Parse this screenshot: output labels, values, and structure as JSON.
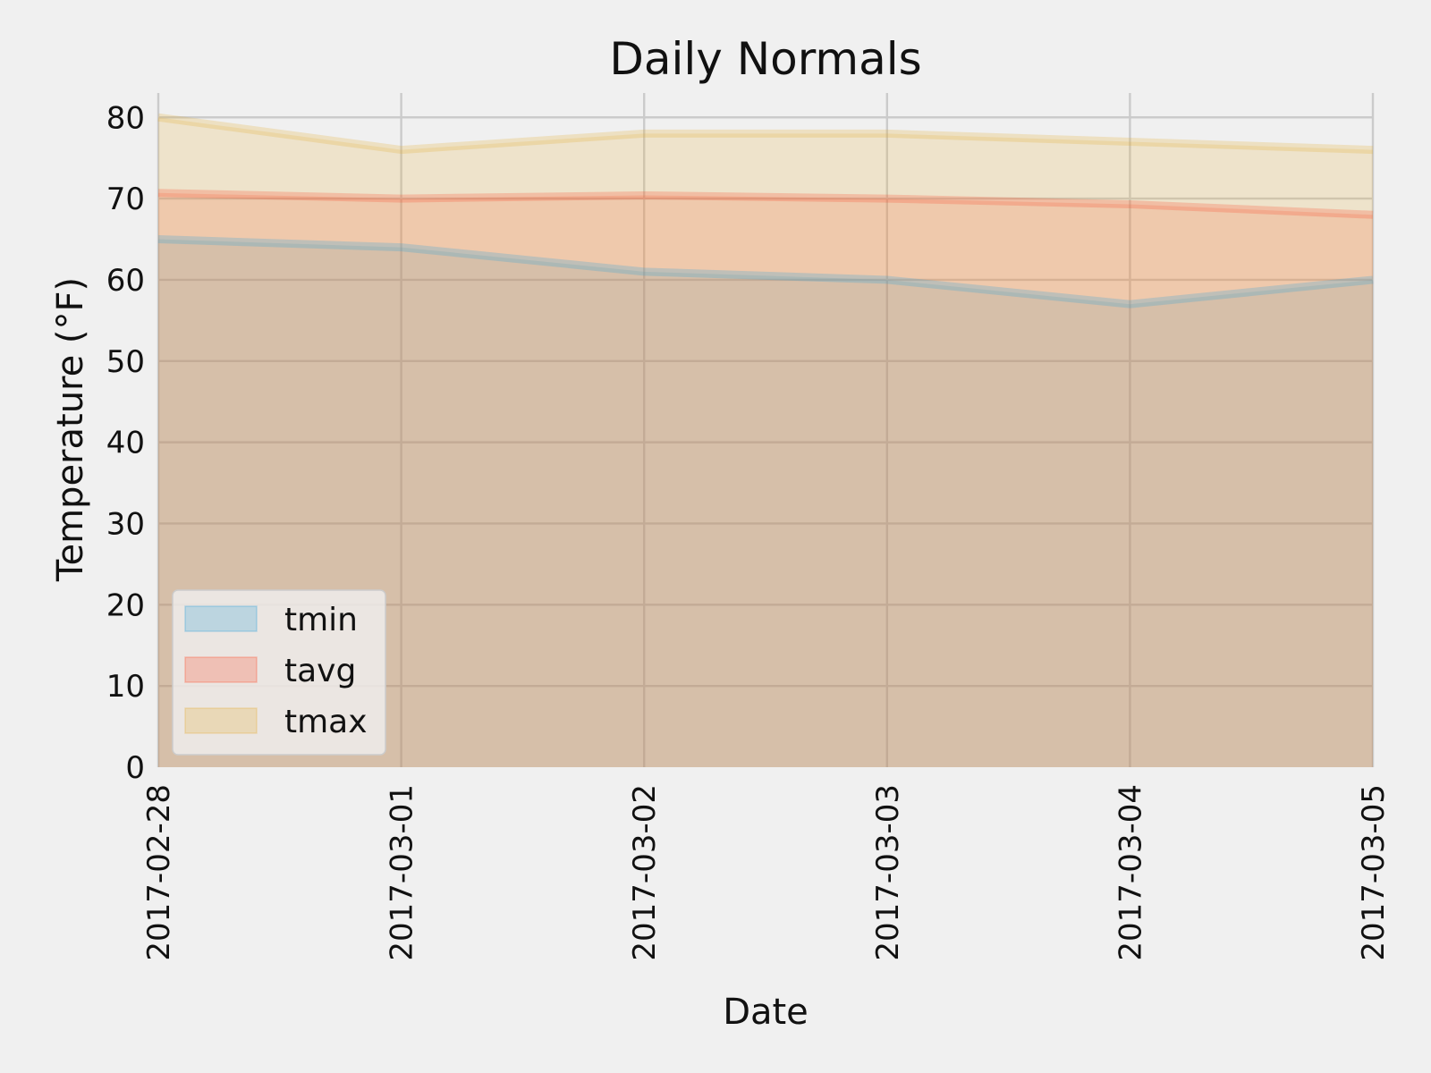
{
  "chart_data": {
    "type": "area",
    "title": "Daily Normals",
    "xlabel": "Date",
    "ylabel": "Temperature (°F)",
    "x": [
      "2017-02-28",
      "2017-03-01",
      "2017-03-02",
      "2017-03-03",
      "2017-03-04",
      "2017-03-05"
    ],
    "ylim": [
      0,
      83
    ],
    "yticks": [
      0,
      10,
      20,
      30,
      40,
      50,
      60,
      70,
      80
    ],
    "grid": true,
    "stacked": false,
    "legend_position": "lower-left",
    "series": [
      {
        "name": "tmin",
        "color": "#30a2da",
        "values": [
          65.0,
          64.0,
          61.0,
          60.0,
          57.0,
          60.0
        ]
      },
      {
        "name": "tavg",
        "color": "#fc4f30",
        "values": [
          70.7,
          70.0,
          70.4,
          70.0,
          69.3,
          68.0
        ]
      },
      {
        "name": "tmax",
        "color": "#e5ae38",
        "values": [
          80.0,
          76.0,
          78.0,
          78.0,
          77.0,
          76.0
        ]
      }
    ],
    "background_color": "#f0f0f0",
    "grid_color": "#cbcbcb"
  }
}
